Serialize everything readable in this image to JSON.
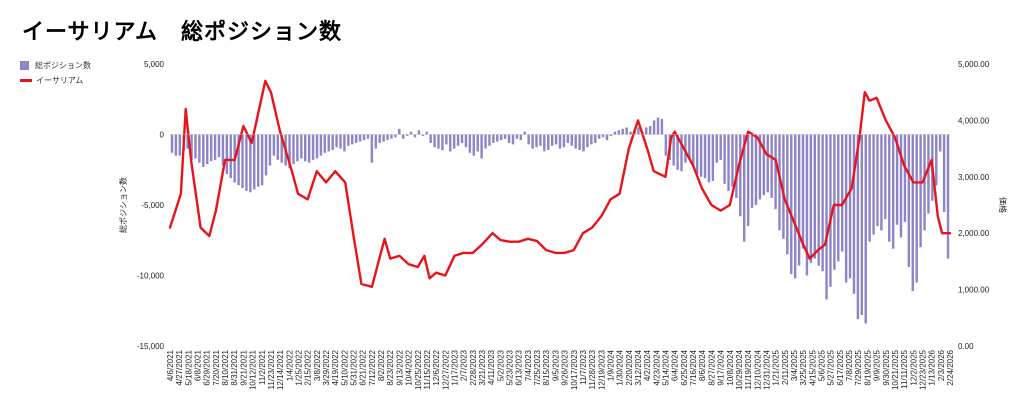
{
  "title": "イーサリアム　総ポジション数",
  "colors": {
    "bar": "#8e84c8",
    "line": "#e8141b"
  },
  "chart_data": {
    "type": "bar+line",
    "title": "イーサリアム　総ポジション数",
    "legend": [
      "総ポジション数",
      "イーサリアム"
    ],
    "legend_position": "left",
    "ylabel_left": "総ポジション数",
    "ylabel_right": "価格",
    "ylim_left": [
      -15000,
      5000
    ],
    "ylim_right": [
      0,
      5000
    ],
    "yticks_left": [
      "5,000",
      "0",
      "-5,000",
      "-10,000",
      "-15,000"
    ],
    "yticks_right": [
      "5,000.00",
      "4,000.00",
      "3,000.00",
      "2,000.00",
      "1,000.00",
      "0.00"
    ],
    "xtick_labels": [
      "4/6/2021",
      "4/27/2021",
      "5/18/2021",
      "6/8/2021",
      "6/29/2021",
      "7/20/2021",
      "8/10/2021",
      "8/31/2021",
      "9/21/2021",
      "10/12/2021",
      "11/2/2021",
      "11/23/2021",
      "12/14/2021",
      "1/4/2022",
      "1/25/2022",
      "2/15/2022",
      "3/8/2022",
      "3/29/2022",
      "4/19/2022",
      "5/10/2022",
      "5/31/2022",
      "6/21/2022",
      "7/12/2022",
      "8/2/2022",
      "8/23/2022",
      "9/13/2022",
      "10/4/2022",
      "10/25/2022",
      "11/15/2022",
      "12/6/2022",
      "12/27/2022",
      "1/17/2023",
      "2/7/2023",
      "2/28/2023",
      "3/21/2023",
      "4/11/2023",
      "5/2/2023",
      "5/23/2023",
      "6/13/2023",
      "7/4/2023",
      "7/25/2023",
      "8/15/2023",
      "9/5/2023",
      "9/26/2023",
      "10/17/2023",
      "11/7/2023",
      "11/28/2023",
      "12/19/2023",
      "1/9/2024",
      "1/30/2024",
      "2/20/2024",
      "3/12/2024",
      "4/2/2024",
      "4/23/2024",
      "5/14/2024",
      "6/4/2024",
      "6/25/2024",
      "7/16/2024",
      "8/6/2024",
      "8/27/2024",
      "9/17/2024",
      "10/8/2024",
      "10/29/2024",
      "11/19/2024",
      "12/10/2024",
      "12/31/2024",
      "1/21/2025",
      "2/11/2025",
      "3/4/2025",
      "3/25/2025",
      "4/15/2025",
      "5/6/2025",
      "5/27/2025",
      "6/17/2025",
      "7/8/2025",
      "7/29/2025",
      "8/19/2025",
      "9/9/2025",
      "9/30/2025",
      "10/21/2025",
      "11/11/2025",
      "12/2/2025",
      "12/23/2025",
      "1/13/2026",
      "2/3/2026",
      "2/24/2026"
    ],
    "series": [
      {
        "name": "総ポジション数",
        "type": "bar",
        "axis": "left",
        "values": [
          -1300,
          -1500,
          -1500,
          -1100,
          -1000,
          -1800,
          -1700,
          -2000,
          -2300,
          -2100,
          -1900,
          -1800,
          -1600,
          -2200,
          -2800,
          -3100,
          -3400,
          -3600,
          -3800,
          -4000,
          -4100,
          -3900,
          -3700,
          -3600,
          -2900,
          -2200,
          -1500,
          -1800,
          -2000,
          -2200,
          -2400,
          -2100,
          -1900,
          -1700,
          -1900,
          -2000,
          -1800,
          -1700,
          -1500,
          -1300,
          -1200,
          -1100,
          -900,
          -1000,
          -1200,
          -800,
          -700,
          -600,
          -500,
          -400,
          -300,
          -2000,
          -1000,
          -600,
          -500,
          -400,
          -300,
          -200,
          400,
          -300,
          -100,
          200,
          -200,
          300,
          -100,
          200,
          -600,
          -900,
          -1000,
          -1100,
          -700,
          -1200,
          -1000,
          -800,
          -600,
          -900,
          -1300,
          -1500,
          -1200,
          -1700,
          -1000,
          -800,
          -600,
          -500,
          -400,
          -300,
          -600,
          -700,
          -300,
          -400,
          200,
          -700,
          -1000,
          -900,
          -800,
          -1200,
          -1100,
          -800,
          -700,
          -1000,
          -900,
          -600,
          -800,
          -1000,
          -1100,
          -1200,
          -900,
          -700,
          -600,
          -300,
          -200,
          -400,
          -100,
          200,
          300,
          400,
          500,
          200,
          300,
          500,
          200,
          500,
          600,
          1000,
          1200,
          1100,
          -1500,
          -1800,
          -2200,
          -2500,
          -2600,
          -2000,
          -1700,
          -2300,
          -2800,
          -3000,
          -3100,
          -3400,
          -3300,
          -2000,
          -1800,
          -3500,
          -4000,
          -3700,
          -4500,
          -5800,
          -7600,
          -6500,
          -5200,
          -5000,
          -4600,
          -4300,
          -4100,
          -4500,
          -5300,
          -6800,
          -7400,
          -8500,
          -9900,
          -10200,
          -9300,
          -8100,
          -10000,
          -9100,
          -8800,
          -9300,
          -9700,
          -11700,
          -10800,
          -9600,
          -9000,
          -8300,
          -10500,
          -10200,
          -11300,
          -13100,
          -12800,
          -13400,
          -7600,
          -7100,
          -6500,
          -6800,
          -6000,
          -7600,
          -8100,
          -6400,
          -7300,
          -6200,
          -9400,
          -11100,
          -10500,
          -8000,
          -6800,
          -5600,
          -4700,
          -3600,
          -1200,
          -5500,
          -8800
        ]
      },
      {
        "name": "イーサリアム",
        "type": "line",
        "axis": "right",
        "x_dates": [
          "4/6/2021",
          "5/1/2021",
          "5/12/2021",
          "5/24/2021",
          "6/15/2021",
          "7/5/2021",
          "7/20/2021",
          "8/10/2021",
          "9/1/2021",
          "9/21/2021",
          "10/10/2021",
          "11/10/2021",
          "11/23/2021",
          "12/14/2021",
          "1/10/2022",
          "1/24/2022",
          "2/15/2022",
          "3/8/2022",
          "3/29/2022",
          "4/19/2022",
          "5/12/2022",
          "6/1/2022",
          "6/18/2022",
          "7/12/2022",
          "8/10/2022",
          "8/23/2022",
          "9/13/2022",
          "10/4/2022",
          "10/25/2022",
          "11/9/2022",
          "11/21/2022",
          "12/6/2022",
          "12/27/2022",
          "1/17/2023",
          "2/7/2023",
          "2/28/2023",
          "3/21/2023",
          "4/14/2023",
          "5/2/2023",
          "5/23/2023",
          "6/13/2023",
          "7/4/2023",
          "7/25/2023",
          "8/15/2023",
          "9/5/2023",
          "9/26/2023",
          "10/17/2023",
          "11/7/2023",
          "11/28/2023",
          "12/19/2023",
          "1/9/2024",
          "1/30/2024",
          "2/20/2024",
          "3/12/2024",
          "4/2/2024",
          "4/17/2024",
          "5/14/2024",
          "5/27/2024",
          "6/4/2024",
          "6/25/2024",
          "7/16/2024",
          "8/5/2024",
          "8/27/2024",
          "9/17/2024",
          "10/8/2024",
          "10/29/2024",
          "11/19/2024",
          "12/10/2024",
          "12/31/2024",
          "1/21/2025",
          "2/11/2025",
          "3/4/2025",
          "3/25/2025",
          "4/9/2025",
          "4/28/2025",
          "5/14/2025",
          "6/3/2025",
          "6/22/2025",
          "7/14/2025",
          "8/1/2025",
          "8/13/2025",
          "8/24/2025",
          "9/9/2025",
          "9/30/2025",
          "10/21/2025",
          "11/11/2025",
          "12/2/2025",
          "12/23/2025",
          "1/13/2026",
          "1/27/2026",
          "2/6/2026",
          "2/24/2026"
        ],
        "values": [
          2100,
          2700,
          4200,
          3300,
          2100,
          1950,
          2400,
          3300,
          3300,
          3900,
          3600,
          4700,
          4500,
          3800,
          3100,
          2700,
          2600,
          3100,
          2900,
          3100,
          2900,
          1900,
          1100,
          1050,
          1900,
          1550,
          1600,
          1450,
          1400,
          1600,
          1200,
          1300,
          1250,
          1600,
          1650,
          1650,
          1800,
          2000,
          1880,
          1850,
          1850,
          1900,
          1860,
          1700,
          1650,
          1650,
          1700,
          2000,
          2100,
          2300,
          2600,
          2700,
          3500,
          4000,
          3500,
          3100,
          3000,
          3700,
          3800,
          3500,
          3200,
          2800,
          2500,
          2400,
          2500,
          3200,
          3800,
          3700,
          3400,
          3300,
          2600,
          2200,
          1800,
          1550,
          1700,
          1800,
          2500,
          2500,
          2800,
          3700,
          4500,
          4350,
          4400,
          4000,
          3700,
          3200,
          2900,
          2900,
          3300,
          2300,
          2000,
          2000
        ]
      }
    ]
  }
}
